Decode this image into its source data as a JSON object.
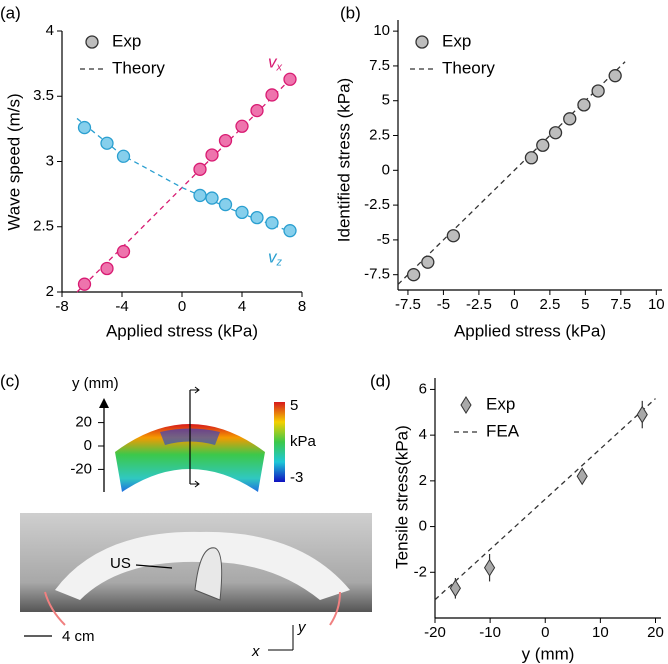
{
  "chart_data": [
    {
      "type": "scatter",
      "panel": "(a)",
      "xlabel": "Applied stress (kPa)",
      "ylabel": "Wave speed (m/s)",
      "xlim": [
        -8,
        8
      ],
      "xticks": [
        -8,
        -4,
        0,
        4,
        8
      ],
      "ylim": [
        2,
        4
      ],
      "yticks": [
        2,
        2.5,
        3,
        3.5,
        4
      ],
      "legend": {
        "marker": "Exp",
        "line": "Theory"
      },
      "series": [
        {
          "label": "v",
          "subscript": "x",
          "color": "#d81b72",
          "fill": "#ee74ad",
          "x": [
            -6.5,
            -5,
            -3.9,
            1.2,
            2,
            2.9,
            4,
            5,
            6,
            7.2
          ],
          "values": [
            2.06,
            2.18,
            2.31,
            2.94,
            3.05,
            3.16,
            3.27,
            3.39,
            3.51,
            3.63
          ]
        },
        {
          "label": "v",
          "subscript": "z",
          "color": "#2a9fd0",
          "fill": "#86cfec",
          "x": [
            -6.5,
            -5,
            -3.9,
            1.2,
            2,
            2.9,
            4,
            5,
            6,
            7.2
          ],
          "values": [
            3.26,
            3.14,
            3.04,
            2.74,
            2.72,
            2.67,
            2.61,
            2.57,
            2.53,
            2.47
          ]
        }
      ],
      "theory": [
        {
          "x": [
            -7,
            -4,
            0,
            4,
            7.3
          ],
          "values": [
            2.0,
            2.34,
            2.8,
            3.26,
            3.64
          ]
        },
        {
          "x": [
            -7,
            -4,
            0,
            4,
            7.3
          ],
          "values": [
            3.33,
            3.05,
            2.8,
            2.6,
            2.46
          ]
        }
      ]
    },
    {
      "type": "scatter",
      "panel": "(b)",
      "xlabel": "Applied stress (kPa)",
      "ylabel": "Identified stress (kPa)",
      "xlim": [
        -8.2,
        10.4
      ],
      "xticks": [
        -7.5,
        -5,
        -2.5,
        0,
        2.5,
        5,
        7.5,
        10
      ],
      "ylim": [
        -8.6,
        10.8
      ],
      "yticks": [
        -7.5,
        -5,
        -2.5,
        0,
        2.5,
        5,
        7.5,
        10
      ],
      "legend": {
        "marker": "Exp",
        "line": "Theory"
      },
      "series": [
        {
          "color": "#333333",
          "fill": "#bdbdbd",
          "x": [
            -7.1,
            -6.1,
            -4.3,
            1.2,
            2,
            2.9,
            3.9,
            4.9,
            5.9,
            7.1
          ],
          "values": [
            -7.5,
            -6.6,
            -4.7,
            0.9,
            1.8,
            2.7,
            3.7,
            4.7,
            5.7,
            6.8
          ]
        }
      ],
      "theory": [
        {
          "x": [
            -8.2,
            7.8
          ],
          "values": [
            -8.2,
            7.8
          ]
        }
      ]
    },
    {
      "type": "errorbar",
      "panel": "(d)",
      "xlabel": "y (mm)",
      "ylabel": "Tensile stress(kPa)",
      "xlim": [
        -20,
        21
      ],
      "xticks": [
        -20,
        -10,
        0,
        10,
        20
      ],
      "ylim": [
        -4,
        6.5
      ],
      "yticks": [
        -2,
        0,
        2,
        4,
        6
      ],
      "legend": {
        "marker": "Exp",
        "line": "FEA"
      },
      "series": [
        {
          "color": "#333333",
          "fill": "#a9a9a9",
          "x": [
            -16.3,
            -10.1,
            6.7,
            17.6
          ],
          "values": [
            -2.7,
            -1.8,
            2.2,
            4.9
          ],
          "errors": [
            0.45,
            0.6,
            0.35,
            0.6
          ]
        }
      ],
      "theory": [
        {
          "x": [
            -20,
            20
          ],
          "values": [
            -3.2,
            5.6
          ]
        }
      ]
    }
  ],
  "panel_c": {
    "label": "(c)",
    "axis_label": "y (mm)",
    "yticks": [
      20,
      0,
      -20
    ],
    "colorbar": {
      "max": 5,
      "unit": "kPa",
      "min": -3
    },
    "probe": "US",
    "scale": "4 cm",
    "axes": [
      "x",
      "y"
    ]
  }
}
